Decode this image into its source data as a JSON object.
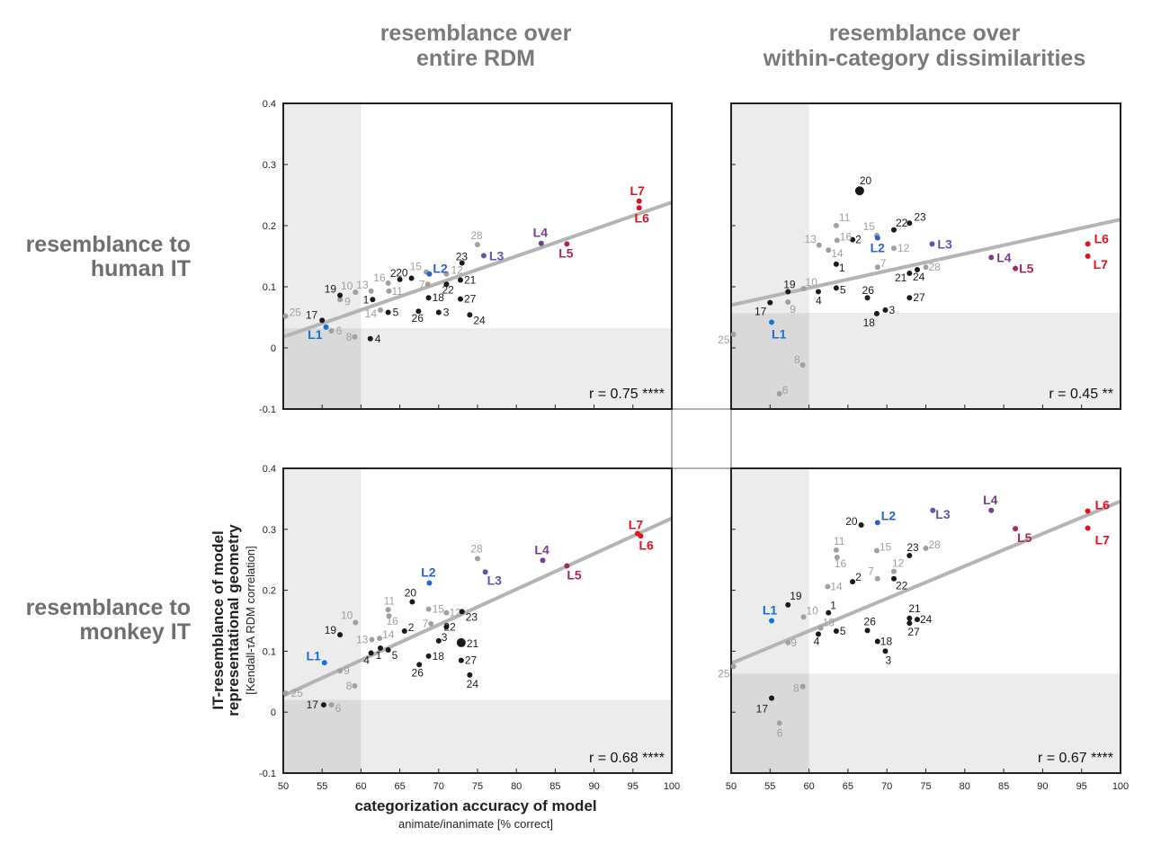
{
  "column_titles": [
    [
      "resemblance over",
      "entire RDM"
    ],
    [
      "resemblance over",
      "within-category dissimilarities"
    ]
  ],
  "row_titles": [
    [
      "resemblance to",
      "human IT"
    ],
    [
      "resemblance to",
      "monkey IT"
    ]
  ],
  "axes": {
    "ylabel_line1": "IT-resemblance of model",
    "ylabel_line2": "representational geometry",
    "ylabel_line3": "[Kendall-τA RDM correlation]",
    "xlabel": "categorization accuracy of model",
    "xlabel_sub": "animate/inanimate [% correct]"
  },
  "colors": {
    "black_model": "#1a1a1a",
    "gray_model": "#a0a0a0",
    "L1": "#1a6fd6",
    "L2": "#2a62c8",
    "L3": "#5b55b0",
    "L4": "#7a3d8c",
    "L5": "#a8285a",
    "L6": "#e0141e",
    "L7": "#e0141e",
    "fit_line": "#b4b4b4",
    "shade_light": "#ececec",
    "shade_dark": "#d9d9d9"
  },
  "chart_data": [
    {
      "type": "scatter",
      "panel": "human IT / entire RDM",
      "xlim": [
        50,
        100
      ],
      "ylim": [
        -0.1,
        0.4
      ],
      "xticks": [
        50,
        55,
        60,
        65,
        70,
        75,
        80,
        85,
        90,
        95,
        100
      ],
      "yticks": [
        -0.1,
        0,
        0.1,
        0.2,
        0.3,
        0.4
      ],
      "chance_x": 60,
      "chance_y": 0.032,
      "fit": {
        "x": [
          50,
          100
        ],
        "y": [
          0.018,
          0.238
        ]
      },
      "correlation": "r = 0.75 ****",
      "points": [
        {
          "label": "1",
          "x": 61.5,
          "y": 0.079,
          "group": "black"
        },
        {
          "label": "2",
          "x": 65.0,
          "y": 0.112,
          "group": "black"
        },
        {
          "label": "3",
          "x": 70.0,
          "y": 0.058,
          "group": "black"
        },
        {
          "label": "4",
          "x": 61.2,
          "y": 0.015,
          "group": "black"
        },
        {
          "label": "5",
          "x": 63.5,
          "y": 0.058,
          "group": "black"
        },
        {
          "label": "6",
          "x": 56.2,
          "y": 0.028,
          "group": "gray"
        },
        {
          "label": "7",
          "x": 68.6,
          "y": 0.104,
          "group": "gray"
        },
        {
          "label": "8",
          "x": 59.2,
          "y": 0.018,
          "group": "gray"
        },
        {
          "label": "9",
          "x": 57.3,
          "y": 0.079,
          "group": "gray"
        },
        {
          "label": "10",
          "x": 59.3,
          "y": 0.091,
          "group": "gray"
        },
        {
          "label": "11",
          "x": 63.6,
          "y": 0.093,
          "group": "gray"
        },
        {
          "label": "12",
          "x": 71.0,
          "y": 0.121,
          "group": "gray"
        },
        {
          "label": "13",
          "x": 61.3,
          "y": 0.093,
          "group": "gray"
        },
        {
          "label": "14",
          "x": 62.5,
          "y": 0.062,
          "group": "gray"
        },
        {
          "label": "15",
          "x": 68.4,
          "y": 0.124,
          "group": "gray"
        },
        {
          "label": "16",
          "x": 63.5,
          "y": 0.106,
          "group": "gray"
        },
        {
          "label": "17",
          "x": 55.0,
          "y": 0.045,
          "group": "black"
        },
        {
          "label": "18",
          "x": 68.7,
          "y": 0.082,
          "group": "black"
        },
        {
          "label": "19",
          "x": 57.3,
          "y": 0.086,
          "group": "black"
        },
        {
          "label": "20",
          "x": 66.5,
          "y": 0.114,
          "group": "black"
        },
        {
          "label": "21",
          "x": 72.8,
          "y": 0.111,
          "group": "black"
        },
        {
          "label": "22",
          "x": 71.0,
          "y": 0.104,
          "group": "black"
        },
        {
          "label": "23",
          "x": 73.0,
          "y": 0.139,
          "group": "black"
        },
        {
          "label": "24",
          "x": 74.0,
          "y": 0.054,
          "group": "black"
        },
        {
          "label": "25",
          "x": 50.3,
          "y": 0.052,
          "group": "gray"
        },
        {
          "label": "26",
          "x": 67.4,
          "y": 0.06,
          "group": "black"
        },
        {
          "label": "27",
          "x": 72.8,
          "y": 0.08,
          "group": "black"
        },
        {
          "label": "28",
          "x": 75.0,
          "y": 0.169,
          "group": "gray"
        },
        {
          "label": "L1",
          "x": 55.5,
          "y": 0.034,
          "group": "L1"
        },
        {
          "label": "L2",
          "x": 68.8,
          "y": 0.121,
          "group": "L2"
        },
        {
          "label": "L3",
          "x": 75.8,
          "y": 0.151,
          "group": "L3"
        },
        {
          "label": "L4",
          "x": 83.2,
          "y": 0.171,
          "group": "L4"
        },
        {
          "label": "L5",
          "x": 86.5,
          "y": 0.17,
          "group": "L5"
        },
        {
          "label": "L6",
          "x": 95.8,
          "y": 0.229,
          "group": "L6"
        },
        {
          "label": "L7",
          "x": 95.8,
          "y": 0.24,
          "group": "L7"
        }
      ]
    },
    {
      "type": "scatter",
      "panel": "human IT / within-category dissimilarities",
      "xlim": [
        50,
        100
      ],
      "ylim": [
        -0.1,
        0.4
      ],
      "xticks": [
        50,
        55,
        60,
        65,
        70,
        75,
        80,
        85,
        90,
        95,
        100
      ],
      "yticks": [
        -0.1,
        0,
        0.1,
        0.2,
        0.3,
        0.4
      ],
      "chance_x": 60,
      "chance_y": 0.057,
      "fit": {
        "x": [
          50,
          100
        ],
        "y": [
          0.07,
          0.21
        ]
      },
      "correlation": "r = 0.45 **",
      "points": [
        {
          "label": "1",
          "x": 63.5,
          "y": 0.137,
          "group": "black"
        },
        {
          "label": "2",
          "x": 65.6,
          "y": 0.177,
          "group": "black"
        },
        {
          "label": "3",
          "x": 69.8,
          "y": 0.062,
          "group": "black"
        },
        {
          "label": "4",
          "x": 61.2,
          "y": 0.092,
          "group": "black"
        },
        {
          "label": "5",
          "x": 63.5,
          "y": 0.098,
          "group": "black"
        },
        {
          "label": "6",
          "x": 56.2,
          "y": -0.075,
          "group": "gray"
        },
        {
          "label": "7",
          "x": 68.8,
          "y": 0.132,
          "group": "gray"
        },
        {
          "label": "8",
          "x": 59.2,
          "y": -0.028,
          "group": "gray"
        },
        {
          "label": "9",
          "x": 57.3,
          "y": 0.075,
          "group": "gray"
        },
        {
          "label": "10",
          "x": 59.3,
          "y": 0.097,
          "group": "gray"
        },
        {
          "label": "11",
          "x": 63.5,
          "y": 0.2,
          "group": "gray"
        },
        {
          "label": "12",
          "x": 70.9,
          "y": 0.163,
          "group": "gray"
        },
        {
          "label": "13",
          "x": 61.3,
          "y": 0.168,
          "group": "gray"
        },
        {
          "label": "14",
          "x": 62.5,
          "y": 0.16,
          "group": "gray"
        },
        {
          "label": "15",
          "x": 68.7,
          "y": 0.184,
          "group": "gray"
        },
        {
          "label": "16",
          "x": 63.6,
          "y": 0.176,
          "group": "gray"
        },
        {
          "label": "17",
          "x": 55.0,
          "y": 0.074,
          "group": "black"
        },
        {
          "label": "18",
          "x": 68.7,
          "y": 0.056,
          "group": "black"
        },
        {
          "label": "19",
          "x": 57.3,
          "y": 0.092,
          "group": "black"
        },
        {
          "label": "20",
          "x": 66.5,
          "y": 0.257,
          "group": "black",
          "big": true
        },
        {
          "label": "21",
          "x": 72.9,
          "y": 0.122,
          "group": "black"
        },
        {
          "label": "22",
          "x": 70.9,
          "y": 0.193,
          "group": "black"
        },
        {
          "label": "23",
          "x": 72.9,
          "y": 0.204,
          "group": "black"
        },
        {
          "label": "24",
          "x": 73.9,
          "y": 0.128,
          "group": "black"
        },
        {
          "label": "25",
          "x": 50.3,
          "y": 0.022,
          "group": "gray"
        },
        {
          "label": "26",
          "x": 67.5,
          "y": 0.082,
          "group": "black"
        },
        {
          "label": "27",
          "x": 72.9,
          "y": 0.082,
          "group": "black"
        },
        {
          "label": "28",
          "x": 75.0,
          "y": 0.132,
          "group": "gray"
        },
        {
          "label": "L1",
          "x": 55.2,
          "y": 0.042,
          "group": "L1"
        },
        {
          "label": "L2",
          "x": 68.8,
          "y": 0.18,
          "group": "L2"
        },
        {
          "label": "L3",
          "x": 75.8,
          "y": 0.17,
          "group": "L3"
        },
        {
          "label": "L4",
          "x": 83.4,
          "y": 0.148,
          "group": "L4"
        },
        {
          "label": "L5",
          "x": 86.5,
          "y": 0.13,
          "group": "L5"
        },
        {
          "label": "L6",
          "x": 95.8,
          "y": 0.17,
          "group": "L6"
        },
        {
          "label": "L7",
          "x": 95.8,
          "y": 0.15,
          "group": "L7"
        }
      ]
    },
    {
      "type": "scatter",
      "panel": "monkey IT / entire RDM",
      "xlim": [
        50,
        100
      ],
      "ylim": [
        -0.1,
        0.4
      ],
      "xticks": [
        50,
        55,
        60,
        65,
        70,
        75,
        80,
        85,
        90,
        95,
        100
      ],
      "yticks": [
        -0.1,
        0,
        0.1,
        0.2,
        0.3,
        0.4
      ],
      "chance_x": 60,
      "chance_y": 0.02,
      "fit": {
        "x": [
          50,
          100
        ],
        "y": [
          0.027,
          0.318
        ]
      },
      "correlation": "r = 0.68 ****",
      "points": [
        {
          "label": "1",
          "x": 62.5,
          "y": 0.105,
          "group": "black"
        },
        {
          "label": "2",
          "x": 65.6,
          "y": 0.133,
          "group": "black"
        },
        {
          "label": "3",
          "x": 70.0,
          "y": 0.117,
          "group": "black"
        },
        {
          "label": "4",
          "x": 61.3,
          "y": 0.097,
          "group": "black"
        },
        {
          "label": "5",
          "x": 63.5,
          "y": 0.102,
          "group": "black"
        },
        {
          "label": "6",
          "x": 56.2,
          "y": 0.012,
          "group": "gray"
        },
        {
          "label": "7",
          "x": 69.0,
          "y": 0.145,
          "group": "gray"
        },
        {
          "label": "8",
          "x": 59.2,
          "y": 0.043,
          "group": "gray"
        },
        {
          "label": "9",
          "x": 57.3,
          "y": 0.068,
          "group": "gray"
        },
        {
          "label": "10",
          "x": 59.3,
          "y": 0.147,
          "group": "gray"
        },
        {
          "label": "11",
          "x": 63.5,
          "y": 0.168,
          "group": "gray"
        },
        {
          "label": "12",
          "x": 71.0,
          "y": 0.163,
          "group": "gray"
        },
        {
          "label": "13",
          "x": 61.4,
          "y": 0.119,
          "group": "gray"
        },
        {
          "label": "14",
          "x": 62.4,
          "y": 0.121,
          "group": "gray"
        },
        {
          "label": "15",
          "x": 68.7,
          "y": 0.169,
          "group": "gray"
        },
        {
          "label": "16",
          "x": 63.6,
          "y": 0.158,
          "group": "gray"
        },
        {
          "label": "17",
          "x": 55.2,
          "y": 0.012,
          "group": "black"
        },
        {
          "label": "18",
          "x": 68.7,
          "y": 0.092,
          "group": "black"
        },
        {
          "label": "19",
          "x": 57.3,
          "y": 0.127,
          "group": "black"
        },
        {
          "label": "20",
          "x": 66.6,
          "y": 0.181,
          "group": "black"
        },
        {
          "label": "21",
          "x": 72.9,
          "y": 0.114,
          "group": "black",
          "big": true
        },
        {
          "label": "22",
          "x": 71.0,
          "y": 0.14,
          "group": "black"
        },
        {
          "label": "23",
          "x": 73.0,
          "y": 0.165,
          "group": "black"
        },
        {
          "label": "24",
          "x": 74.0,
          "y": 0.061,
          "group": "black"
        },
        {
          "label": "25",
          "x": 50.3,
          "y": 0.031,
          "group": "gray"
        },
        {
          "label": "26",
          "x": 67.5,
          "y": 0.078,
          "group": "black"
        },
        {
          "label": "27",
          "x": 72.9,
          "y": 0.085,
          "group": "black"
        },
        {
          "label": "28",
          "x": 75.0,
          "y": 0.252,
          "group": "gray"
        },
        {
          "label": "L1",
          "x": 55.3,
          "y": 0.081,
          "group": "L1"
        },
        {
          "label": "L2",
          "x": 68.8,
          "y": 0.212,
          "group": "L2"
        },
        {
          "label": "L3",
          "x": 76.0,
          "y": 0.23,
          "group": "L3"
        },
        {
          "label": "L4",
          "x": 83.4,
          "y": 0.249,
          "group": "L4"
        },
        {
          "label": "L5",
          "x": 86.5,
          "y": 0.24,
          "group": "L5"
        },
        {
          "label": "L6",
          "x": 96.0,
          "y": 0.289,
          "group": "L6"
        },
        {
          "label": "L7",
          "x": 95.6,
          "y": 0.293,
          "group": "L7"
        }
      ]
    },
    {
      "type": "scatter",
      "panel": "monkey IT / within-category dissimilarities",
      "xlim": [
        50,
        100
      ],
      "ylim": [
        -0.1,
        0.4
      ],
      "xticks": [
        50,
        55,
        60,
        65,
        70,
        75,
        80,
        85,
        90,
        95,
        100
      ],
      "yticks": [
        -0.1,
        0,
        0.1,
        0.2,
        0.3,
        0.4
      ],
      "chance_x": 60,
      "chance_y": 0.063,
      "fit": {
        "x": [
          50,
          100
        ],
        "y": [
          0.08,
          0.346
        ]
      },
      "correlation": "r = 0.67 ****",
      "points": [
        {
          "label": "1",
          "x": 62.5,
          "y": 0.163,
          "group": "black"
        },
        {
          "label": "2",
          "x": 65.6,
          "y": 0.214,
          "group": "black"
        },
        {
          "label": "3",
          "x": 69.8,
          "y": 0.1,
          "group": "black"
        },
        {
          "label": "4",
          "x": 61.2,
          "y": 0.128,
          "group": "black"
        },
        {
          "label": "5",
          "x": 63.5,
          "y": 0.133,
          "group": "black"
        },
        {
          "label": "6",
          "x": 56.2,
          "y": -0.018,
          "group": "gray"
        },
        {
          "label": "7",
          "x": 68.8,
          "y": 0.219,
          "group": "gray"
        },
        {
          "label": "8",
          "x": 59.2,
          "y": 0.042,
          "group": "gray"
        },
        {
          "label": "9",
          "x": 57.3,
          "y": 0.114,
          "group": "gray"
        },
        {
          "label": "10",
          "x": 59.3,
          "y": 0.156,
          "group": "gray"
        },
        {
          "label": "11",
          "x": 63.5,
          "y": 0.266,
          "group": "gray"
        },
        {
          "label": "12",
          "x": 70.9,
          "y": 0.231,
          "group": "gray"
        },
        {
          "label": "13",
          "x": 61.5,
          "y": 0.138,
          "group": "gray"
        },
        {
          "label": "14",
          "x": 62.4,
          "y": 0.206,
          "group": "gray"
        },
        {
          "label": "15",
          "x": 68.7,
          "y": 0.265,
          "group": "gray"
        },
        {
          "label": "16",
          "x": 63.6,
          "y": 0.254,
          "group": "gray"
        },
        {
          "label": "17",
          "x": 55.2,
          "y": 0.023,
          "group": "black"
        },
        {
          "label": "18",
          "x": 68.8,
          "y": 0.116,
          "group": "black"
        },
        {
          "label": "19",
          "x": 57.3,
          "y": 0.176,
          "group": "black"
        },
        {
          "label": "20",
          "x": 66.7,
          "y": 0.307,
          "group": "black"
        },
        {
          "label": "21",
          "x": 72.9,
          "y": 0.154,
          "group": "black"
        },
        {
          "label": "22",
          "x": 70.9,
          "y": 0.219,
          "group": "black"
        },
        {
          "label": "23",
          "x": 72.9,
          "y": 0.257,
          "group": "black"
        },
        {
          "label": "24",
          "x": 73.9,
          "y": 0.152,
          "group": "black"
        },
        {
          "label": "25",
          "x": 50.3,
          "y": 0.075,
          "group": "gray"
        },
        {
          "label": "26",
          "x": 67.5,
          "y": 0.134,
          "group": "black"
        },
        {
          "label": "27",
          "x": 72.9,
          "y": 0.146,
          "group": "black"
        },
        {
          "label": "28",
          "x": 75.0,
          "y": 0.269,
          "group": "gray"
        },
        {
          "label": "L1",
          "x": 55.2,
          "y": 0.15,
          "group": "L1"
        },
        {
          "label": "L2",
          "x": 68.8,
          "y": 0.311,
          "group": "L2"
        },
        {
          "label": "L3",
          "x": 75.9,
          "y": 0.331,
          "group": "L3"
        },
        {
          "label": "L4",
          "x": 83.4,
          "y": 0.331,
          "group": "L4"
        },
        {
          "label": "L5",
          "x": 86.5,
          "y": 0.301,
          "group": "L5"
        },
        {
          "label": "L6",
          "x": 95.8,
          "y": 0.33,
          "group": "L6"
        },
        {
          "label": "L7",
          "x": 95.8,
          "y": 0.302,
          "group": "L7"
        }
      ]
    }
  ]
}
